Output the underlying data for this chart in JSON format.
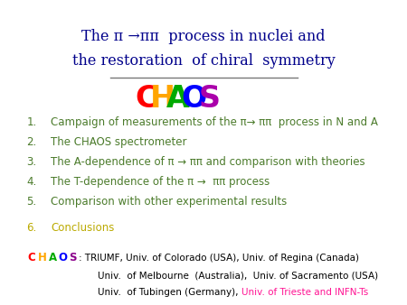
{
  "bg_color": "#ffffff",
  "title_line1": "The π →ππ  process in nuclei and",
  "title_line2": "the restoration  of chiral  symmetry",
  "title_color": "#00008B",
  "title_fontsize": 11.5,
  "chaos_letters": [
    "C",
    "H",
    "A",
    "O",
    "S"
  ],
  "chaos_colors": [
    "#FF0000",
    "#FFA500",
    "#00AA00",
    "#0000FF",
    "#AA00AA"
  ],
  "chaos_fontsize": 24,
  "line_color": "#777777",
  "items_color": "#4B7B2B",
  "items": [
    "Campaign of measurements of the π→ ππ  process in N and A",
    "The CHAOS spectrometer",
    "The A-dependence of π → ππ and comparison with theories",
    "The T-dependence of the π →  ππ process",
    "Comparison with other experimental results"
  ],
  "item6": "Conclusions",
  "item6_color": "#BBAA00",
  "items_fontsize": 8.5,
  "affil_black": "TRIUMF, Univ. of Colorado (USA), Univ. of Regina (Canada)",
  "affil_black2": "Univ.  of Melbourne  (Australia),  Univ. of Sacramento (USA)",
  "affil_black3": "Univ.  of Tubingen (Germany),  ",
  "affil_pink": "Univ. of Trieste and INFN-Ts",
  "affil_fontsize": 7.5,
  "chaos_tag_colors": [
    "#FF0000",
    "#FFA500",
    "#00AA00",
    "#0000FF",
    "#8B008B"
  ]
}
